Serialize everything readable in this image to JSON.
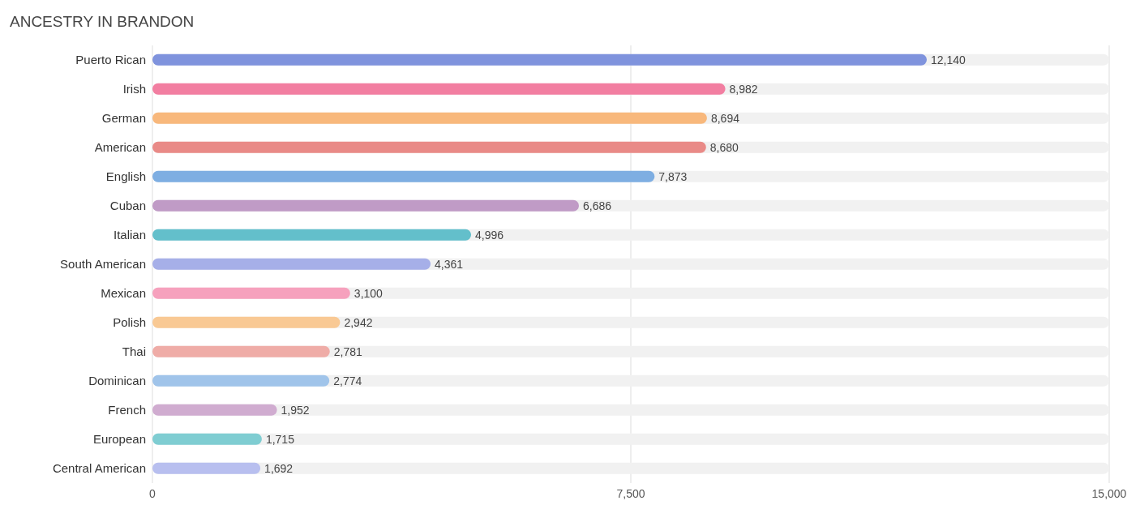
{
  "chart_data": {
    "type": "bar",
    "orientation": "horizontal",
    "title": "ANCESTRY IN BRANDON",
    "categories": [
      "Puerto Rican",
      "Irish",
      "German",
      "American",
      "English",
      "Cuban",
      "Italian",
      "South American",
      "Mexican",
      "Polish",
      "Thai",
      "Dominican",
      "French",
      "European",
      "Central American"
    ],
    "values": [
      12140,
      8982,
      8694,
      8680,
      7873,
      6686,
      4996,
      4361,
      3100,
      2942,
      2781,
      2774,
      1952,
      1715,
      1692
    ],
    "colors": [
      "#7f93dd",
      "#f27ea1",
      "#f8b87c",
      "#e98a87",
      "#7eaee2",
      "#c09bc6",
      "#63bfcb",
      "#a6afe8",
      "#f6a1bd",
      "#f9c994",
      "#efaca7",
      "#a0c4ea",
      "#d0acd0",
      "#7fcdd2",
      "#b8bfef"
    ],
    "value_labels": [
      "12,140",
      "8,982",
      "8,694",
      "8,680",
      "7,873",
      "6,686",
      "4,996",
      "4,361",
      "3,100",
      "2,942",
      "2,781",
      "2,774",
      "1,952",
      "1,715",
      "1,692"
    ],
    "xlim": [
      0,
      15000
    ],
    "xticks": [
      0,
      {
        "value": 7500,
        "label": "7,500"
      },
      {
        "value": 15000,
        "label": "15,000"
      }
    ],
    "grid": "x"
  }
}
